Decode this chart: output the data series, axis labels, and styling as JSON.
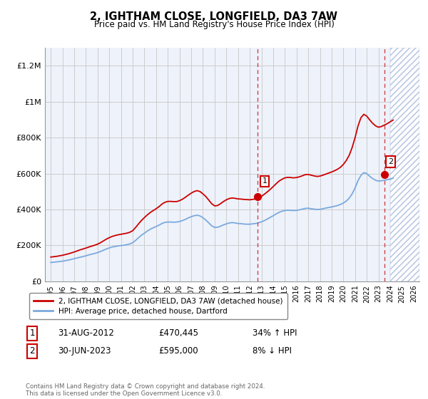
{
  "title": "2, IGHTHAM CLOSE, LONGFIELD, DA3 7AW",
  "subtitle": "Price paid vs. HM Land Registry's House Price Index (HPI)",
  "ylim": [
    0,
    1300000
  ],
  "yticks": [
    0,
    200000,
    400000,
    600000,
    800000,
    1000000,
    1200000
  ],
  "ytick_labels": [
    "£0",
    "£200K",
    "£400K",
    "£600K",
    "£800K",
    "£1M",
    "£1.2M"
  ],
  "bg_color": "#ffffff",
  "plot_bg_color": "#eef2fb",
  "hatch_region_start": 2024.0,
  "hatch_region_end": 2026.5,
  "grid_color": "#cccccc",
  "red_line_color": "#cc0000",
  "blue_line_color": "#7aaadd",
  "marker1_x": 2012.67,
  "marker1_y": 470445,
  "marker2_x": 2023.5,
  "marker2_y": 595000,
  "dashed_line_color": "#cc4444",
  "point1_date": "31-AUG-2012",
  "point1_price": "£470,445",
  "point1_hpi": "34% ↑ HPI",
  "point2_date": "30-JUN-2023",
  "point2_price": "£595,000",
  "point2_hpi": "8% ↓ HPI",
  "legend_label1": "2, IGHTHAM CLOSE, LONGFIELD, DA3 7AW (detached house)",
  "legend_label2": "HPI: Average price, detached house, Dartford",
  "footer": "Contains HM Land Registry data © Crown copyright and database right 2024.\nThis data is licensed under the Open Government Licence v3.0.",
  "xmin": 1994.5,
  "xmax": 2026.5,
  "hpi_years": [
    1995.0,
    1995.25,
    1995.5,
    1995.75,
    1996.0,
    1996.25,
    1996.5,
    1996.75,
    1997.0,
    1997.25,
    1997.5,
    1997.75,
    1998.0,
    1998.25,
    1998.5,
    1998.75,
    1999.0,
    1999.25,
    1999.5,
    1999.75,
    2000.0,
    2000.25,
    2000.5,
    2000.75,
    2001.0,
    2001.25,
    2001.5,
    2001.75,
    2002.0,
    2002.25,
    2002.5,
    2002.75,
    2003.0,
    2003.25,
    2003.5,
    2003.75,
    2004.0,
    2004.25,
    2004.5,
    2004.75,
    2005.0,
    2005.25,
    2005.5,
    2005.75,
    2006.0,
    2006.25,
    2006.5,
    2006.75,
    2007.0,
    2007.25,
    2007.5,
    2007.75,
    2008.0,
    2008.25,
    2008.5,
    2008.75,
    2009.0,
    2009.25,
    2009.5,
    2009.75,
    2010.0,
    2010.25,
    2010.5,
    2010.75,
    2011.0,
    2011.25,
    2011.5,
    2011.75,
    2012.0,
    2012.25,
    2012.5,
    2012.75,
    2013.0,
    2013.25,
    2013.5,
    2013.75,
    2014.0,
    2014.25,
    2014.5,
    2014.75,
    2015.0,
    2015.25,
    2015.5,
    2015.75,
    2016.0,
    2016.25,
    2016.5,
    2016.75,
    2017.0,
    2017.25,
    2017.5,
    2017.75,
    2018.0,
    2018.25,
    2018.5,
    2018.75,
    2019.0,
    2019.25,
    2019.5,
    2019.75,
    2020.0,
    2020.25,
    2020.5,
    2020.75,
    2021.0,
    2021.25,
    2021.5,
    2021.75,
    2022.0,
    2022.25,
    2022.5,
    2022.75,
    2023.0,
    2023.25,
    2023.5,
    2023.75,
    2024.0,
    2024.25
  ],
  "hpi_values": [
    105000,
    106000,
    108000,
    110000,
    112000,
    115000,
    118000,
    122000,
    126000,
    130000,
    134000,
    138000,
    142000,
    147000,
    151000,
    155000,
    160000,
    166000,
    173000,
    180000,
    186000,
    191000,
    194000,
    197000,
    199000,
    201000,
    204000,
    208000,
    215000,
    228000,
    243000,
    257000,
    268000,
    280000,
    290000,
    298000,
    305000,
    313000,
    322000,
    328000,
    330000,
    330000,
    329000,
    330000,
    333000,
    338000,
    345000,
    353000,
    360000,
    365000,
    368000,
    364000,
    354000,
    341000,
    325000,
    309000,
    300000,
    301000,
    307000,
    314000,
    320000,
    325000,
    327000,
    325000,
    322000,
    321000,
    319000,
    318000,
    318000,
    320000,
    322000,
    326000,
    331000,
    338000,
    347000,
    356000,
    365000,
    375000,
    384000,
    390000,
    394000,
    396000,
    395000,
    394000,
    395000,
    398000,
    402000,
    406000,
    407000,
    404000,
    402000,
    400000,
    401000,
    404000,
    408000,
    411000,
    414000,
    418000,
    422000,
    428000,
    436000,
    447000,
    463000,
    487000,
    520000,
    560000,
    590000,
    605000,
    600000,
    585000,
    572000,
    563000,
    558000,
    560000,
    563000,
    566000,
    570000,
    574000
  ],
  "red_years": [
    1995.0,
    1995.25,
    1995.5,
    1995.75,
    1996.0,
    1996.25,
    1996.5,
    1996.75,
    1997.0,
    1997.25,
    1997.5,
    1997.75,
    1998.0,
    1998.25,
    1998.5,
    1998.75,
    1999.0,
    1999.25,
    1999.5,
    1999.75,
    2000.0,
    2000.25,
    2000.5,
    2000.75,
    2001.0,
    2001.25,
    2001.5,
    2001.75,
    2002.0,
    2002.25,
    2002.5,
    2002.75,
    2003.0,
    2003.25,
    2003.5,
    2003.75,
    2004.0,
    2004.25,
    2004.5,
    2004.75,
    2005.0,
    2005.25,
    2005.5,
    2005.75,
    2006.0,
    2006.25,
    2006.5,
    2006.75,
    2007.0,
    2007.25,
    2007.5,
    2007.75,
    2008.0,
    2008.25,
    2008.5,
    2008.75,
    2009.0,
    2009.25,
    2009.5,
    2009.75,
    2010.0,
    2010.25,
    2010.5,
    2010.75,
    2011.0,
    2011.25,
    2011.5,
    2011.75,
    2012.0,
    2012.25,
    2012.5,
    2012.75,
    2013.0,
    2013.25,
    2013.5,
    2013.75,
    2014.0,
    2014.25,
    2014.5,
    2014.75,
    2015.0,
    2015.25,
    2015.5,
    2015.75,
    2016.0,
    2016.25,
    2016.5,
    2016.75,
    2017.0,
    2017.25,
    2017.5,
    2017.75,
    2018.0,
    2018.25,
    2018.5,
    2018.75,
    2019.0,
    2019.25,
    2019.5,
    2019.75,
    2020.0,
    2020.25,
    2020.5,
    2020.75,
    2021.0,
    2021.25,
    2021.5,
    2021.75,
    2022.0,
    2022.25,
    2022.5,
    2022.75,
    2023.0,
    2023.25,
    2023.5,
    2023.75,
    2024.0,
    2024.25
  ],
  "red_values": [
    135000,
    137000,
    139000,
    142000,
    145000,
    149000,
    153000,
    158000,
    163000,
    169000,
    175000,
    180000,
    185000,
    191000,
    196000,
    201000,
    207000,
    215000,
    225000,
    235000,
    243000,
    250000,
    255000,
    259000,
    262000,
    265000,
    268000,
    273000,
    282000,
    300000,
    320000,
    339000,
    355000,
    370000,
    383000,
    394000,
    404000,
    416000,
    430000,
    440000,
    445000,
    445000,
    444000,
    444000,
    449000,
    457000,
    468000,
    480000,
    491000,
    500000,
    505000,
    500000,
    487000,
    472000,
    452000,
    432000,
    420000,
    422000,
    432000,
    444000,
    454000,
    461000,
    464000,
    462000,
    459000,
    458000,
    456000,
    455000,
    454000,
    456000,
    459000,
    465000,
    473000,
    485000,
    498000,
    512000,
    527000,
    543000,
    558000,
    568000,
    576000,
    579000,
    578000,
    576000,
    578000,
    582000,
    588000,
    594000,
    595000,
    591000,
    587000,
    584000,
    586000,
    591000,
    597000,
    603000,
    609000,
    616000,
    624000,
    635000,
    651000,
    673000,
    702000,
    745000,
    800000,
    865000,
    911000,
    930000,
    920000,
    899000,
    880000,
    866000,
    858000,
    862000,
    870000,
    878000,
    888000,
    898000
  ]
}
